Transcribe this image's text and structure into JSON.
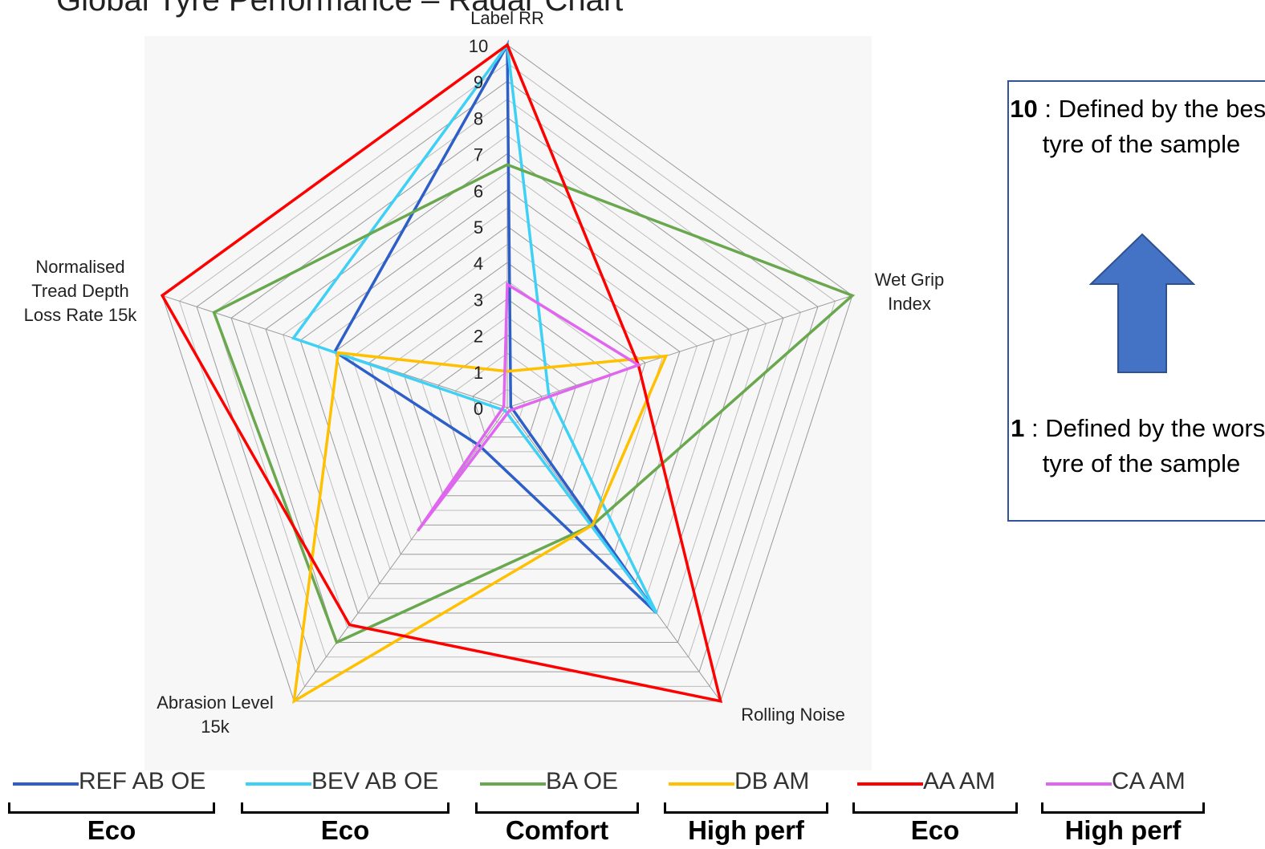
{
  "chart_data": {
    "type": "radar",
    "title": "Global Tyre Performance – Radar Chart",
    "axes": [
      "Label RR",
      "Wet Grip Index",
      "Rolling Noise",
      "Abrasion Level 15k",
      "Normalised Tread Depth Loss Rate 15k"
    ],
    "axis_label_lines": [
      [
        "Label RR"
      ],
      [
        "Wet Grip",
        "Index"
      ],
      [
        "Rolling Noise"
      ],
      [
        "Abrasion Level",
        "15k"
      ],
      [
        "Normalised",
        "Tread Depth",
        "Loss Rate 15k"
      ]
    ],
    "rlim": [
      0,
      10
    ],
    "ticks": [
      0,
      1,
      2,
      3,
      4,
      5,
      6,
      7,
      8,
      9,
      10
    ],
    "grid": true,
    "legend_position": "bottom",
    "series": [
      {
        "name": "REF AB OE",
        "values": [
          10,
          0.1,
          7,
          1.3,
          5
        ],
        "color": "#2e5fc8"
      },
      {
        "name": "BEV AB OE",
        "values": [
          10,
          1.2,
          7,
          0.1,
          6.2
        ],
        "color": "#3fd0f5"
      },
      {
        "name": "BA OE",
        "values": [
          6.7,
          10,
          4,
          8,
          8.5
        ],
        "color": "#6aa84f"
      },
      {
        "name": "DB AM",
        "values": [
          1,
          4.6,
          4,
          10,
          4.9
        ],
        "color": "#ffc000"
      },
      {
        "name": "AA AM",
        "values": [
          10,
          3.8,
          10,
          7.4,
          10
        ],
        "color": "#ff0000"
      },
      {
        "name": "CA AM",
        "values": [
          3.4,
          3.8,
          0.1,
          4.2,
          0.1
        ],
        "color": "#e066f0"
      }
    ]
  },
  "groups": [
    {
      "label": "Eco"
    },
    {
      "label": "Eco"
    },
    {
      "label": "Comfort"
    },
    {
      "label": "High perf"
    },
    {
      "label": "Eco"
    },
    {
      "label": "High perf"
    }
  ],
  "note": {
    "top_bold": "10",
    "top_text": " : Defined by the best tyre of the sample",
    "bottom_bold": "1",
    "bottom_text": " : Defined by the worst tyre of the sample",
    "arrow_icon": "up-arrow-icon",
    "arrow_color": "#4472c4"
  }
}
